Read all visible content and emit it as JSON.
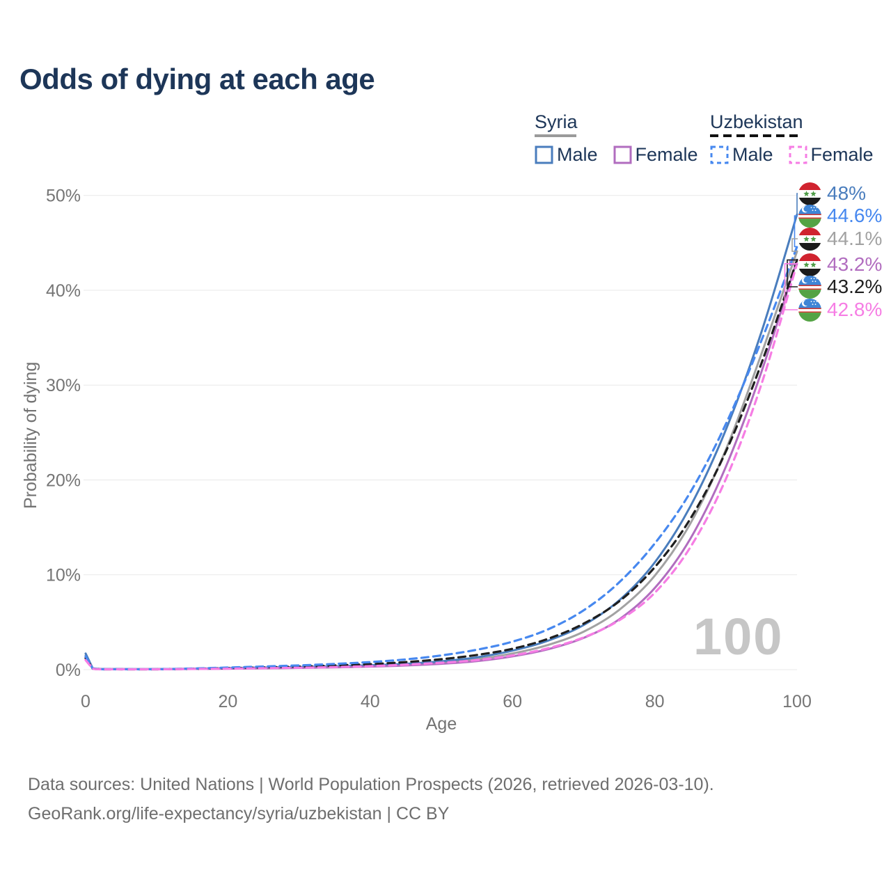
{
  "page": {
    "title": "Odds of dying at each age",
    "watermark": "100",
    "footer": {
      "line1": "Data sources: United Nations | World Population Prospects (2026, retrieved 2026-03-10).",
      "line2": "GeoRank.org/life-expectancy/syria/uzbekistan | CC BY"
    }
  },
  "legend": {
    "syria": {
      "title": "Syria",
      "male_label": "Male",
      "female_label": "Female"
    },
    "uzbekistan": {
      "title": "Uzbekistan",
      "male_label": "Male",
      "female_label": "Female"
    }
  },
  "colors": {
    "syria_male": "#4a7dbd",
    "syria_female": "#b16dbf",
    "syria_all": "#a2a2a2",
    "uzbek_male": "#4788ef",
    "uzbek_female": "#f67de4",
    "uzbek_all": "#1f1f1f",
    "title_navy": "#1d3658",
    "axis_gray": "#757575",
    "grid": "#e9e9e9",
    "watermark_gray": "#c6c6c6"
  },
  "chart_data": {
    "type": "line",
    "title": "Odds of dying at each age",
    "xlabel": "Age",
    "ylabel": "Probability of dying",
    "xlim": [
      0,
      100
    ],
    "ylim": [
      0,
      50
    ],
    "y_unit": "%",
    "grid": "horizontal",
    "legend_position": "top-right",
    "hover_age": "100",
    "xticks": [
      "0",
      "20",
      "40",
      "60",
      "80",
      "100"
    ],
    "yticks": [
      "0%",
      "10%",
      "20%",
      "30%",
      "40%",
      "50%"
    ],
    "x_ages": [
      0,
      1,
      5,
      10,
      15,
      20,
      25,
      30,
      35,
      40,
      45,
      50,
      55,
      60,
      65,
      70,
      75,
      80,
      85,
      90,
      95,
      100
    ],
    "series": [
      {
        "id": "syria_all",
        "name": "Syria",
        "country": "Syria",
        "group": "all",
        "line": "solid",
        "color": "#a2a2a2",
        "end_label": "44.1%",
        "values": [
          1.5,
          0.13,
          0.05,
          0.05,
          0.08,
          0.13,
          0.18,
          0.23,
          0.3,
          0.39,
          0.53,
          0.75,
          1.1,
          1.7,
          2.6,
          4.0,
          6.3,
          9.9,
          15.4,
          23.2,
          33.3,
          44.1
        ]
      },
      {
        "id": "syria_male",
        "name": "Syria Male",
        "country": "Syria",
        "group": "male",
        "line": "solid",
        "color": "#4a7dbd",
        "end_label": "48%",
        "values": [
          1.7,
          0.15,
          0.06,
          0.06,
          0.1,
          0.16,
          0.22,
          0.28,
          0.36,
          0.46,
          0.62,
          0.88,
          1.3,
          2.0,
          3.05,
          4.7,
          7.3,
          11.3,
          17.2,
          25.3,
          35.6,
          48.0
        ]
      },
      {
        "id": "syria_female",
        "name": "Syria Female",
        "country": "Syria",
        "group": "female",
        "line": "solid",
        "color": "#b16dbf",
        "end_label": "43.2%",
        "values": [
          1.3,
          0.11,
          0.05,
          0.05,
          0.07,
          0.1,
          0.14,
          0.18,
          0.24,
          0.32,
          0.44,
          0.62,
          0.9,
          1.4,
          2.15,
          3.35,
          5.3,
          8.6,
          13.8,
          21.4,
          31.4,
          43.2
        ]
      },
      {
        "id": "uzbek_all",
        "name": "Uzbekistan",
        "country": "Uzbekistan",
        "group": "all",
        "line": "dashed",
        "color": "#1f1f1f",
        "end_label": "43.2%",
        "values": [
          1.2,
          0.1,
          0.04,
          0.04,
          0.09,
          0.16,
          0.24,
          0.32,
          0.44,
          0.58,
          0.8,
          1.1,
          1.55,
          2.2,
          3.25,
          4.85,
          7.2,
          10.8,
          15.9,
          23.0,
          32.3,
          43.2
        ]
      },
      {
        "id": "uzbek_male",
        "name": "Uzbekistan Male",
        "country": "Uzbekistan",
        "group": "male",
        "line": "dashed",
        "color": "#4788ef",
        "end_label": "44.6%",
        "values": [
          1.4,
          0.12,
          0.05,
          0.05,
          0.12,
          0.22,
          0.33,
          0.45,
          0.6,
          0.8,
          1.08,
          1.5,
          2.1,
          2.95,
          4.25,
          6.25,
          9.2,
          13.3,
          18.7,
          25.9,
          34.7,
          44.6
        ]
      },
      {
        "id": "uzbek_female",
        "name": "Uzbekistan Female",
        "country": "Uzbekistan",
        "group": "female",
        "line": "dashed",
        "color": "#f67de4",
        "end_label": "42.8%",
        "values": [
          1.0,
          0.09,
          0.04,
          0.04,
          0.07,
          0.1,
          0.15,
          0.2,
          0.27,
          0.37,
          0.52,
          0.73,
          1.0,
          1.5,
          2.25,
          3.4,
          5.2,
          8.1,
          12.9,
          20.1,
          30.1,
          42.8
        ]
      }
    ],
    "end_labels": [
      {
        "text": "48%",
        "flag": "syria",
        "series": "syria_male",
        "color": "#4a7dbd"
      },
      {
        "text": "44.6%",
        "flag": "uzbekistan",
        "series": "uzbek_male",
        "color": "#4788ef"
      },
      {
        "text": "44.1%",
        "flag": "syria",
        "series": "syria_all",
        "color": "#a2a2a2"
      },
      {
        "text": "43.2%",
        "flag": "syria",
        "series": "syria_female",
        "color": "#b16dbf"
      },
      {
        "text": "43.2%",
        "flag": "uzbekistan",
        "series": "uzbek_all",
        "color": "#1f1f1f"
      },
      {
        "text": "42.8%",
        "flag": "uzbekistan",
        "series": "uzbek_female",
        "color": "#f67de4"
      }
    ]
  }
}
